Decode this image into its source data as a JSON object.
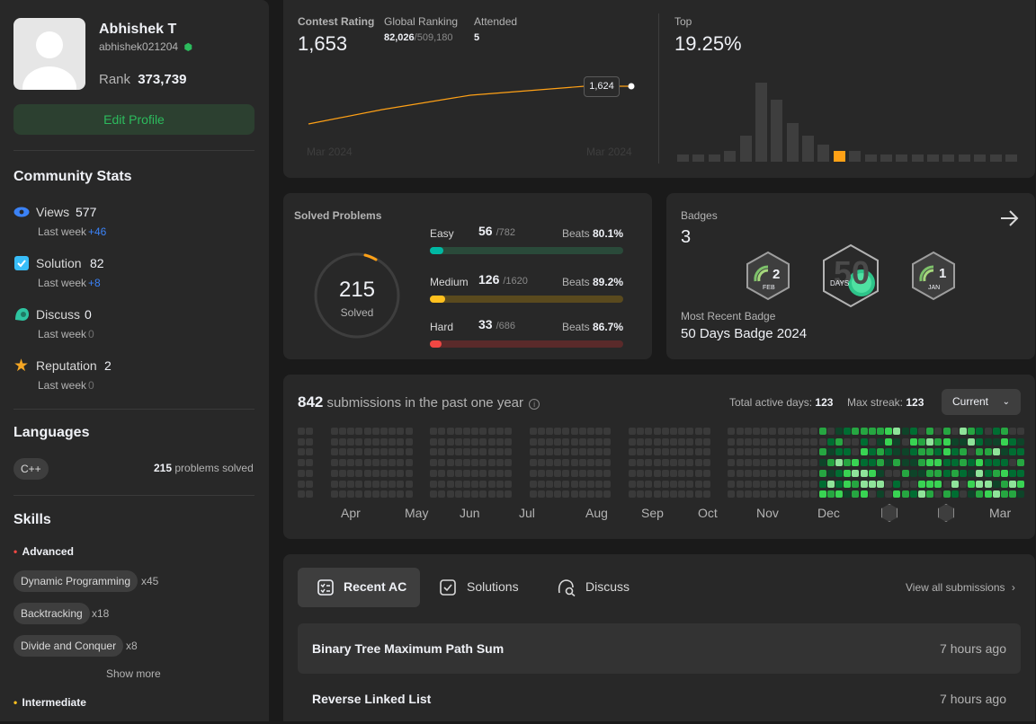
{
  "profile": {
    "name": "Abhishek T",
    "username": "abhishek021204",
    "rank_label": "Rank",
    "rank_value": "373,739",
    "edit_label": "Edit Profile"
  },
  "community": {
    "title": "Community Stats",
    "last_week_label": "Last week",
    "items": [
      {
        "label": "Views",
        "value": "577",
        "delta": "+46",
        "color": "#3b82f6"
      },
      {
        "label": "Solution",
        "value": "82",
        "delta": "+8",
        "color": "#38bdf8"
      },
      {
        "label": "Discuss",
        "value": "0",
        "delta": "0",
        "color": "#2ec4a0"
      },
      {
        "label": "Reputation",
        "value": "2",
        "delta": "0",
        "color": "#f5a623"
      }
    ]
  },
  "languages": {
    "title": "Languages",
    "items": [
      {
        "name": "C++",
        "count": "215",
        "suffix": "problems solved"
      }
    ]
  },
  "skills": {
    "title": "Skills",
    "advanced_label": "Advanced",
    "advanced": [
      {
        "name": "Dynamic Programming",
        "count": "x45"
      },
      {
        "name": "Backtracking",
        "count": "x18"
      },
      {
        "name": "Divide and Conquer",
        "count": "x8"
      }
    ],
    "show_more": "Show more",
    "intermediate_label": "Intermediate"
  },
  "contest": {
    "rating_label": "Contest Rating",
    "rating": "1,653",
    "global_label": "Global Ranking",
    "global_rank": "82,026",
    "global_total": "/509,180",
    "attended_label": "Attended",
    "attended": "5",
    "tooltip": "1,624",
    "axis_start": "Mar 2024",
    "axis_end": "Mar 2024",
    "top_label": "Top",
    "top_value": "19.25%",
    "histogram": [
      0.08,
      0.08,
      0.08,
      0.13,
      0.3,
      0.92,
      0.72,
      0.45,
      0.3,
      0.2,
      0.13,
      0.13,
      0.08,
      0.08,
      0.08,
      0.08,
      0.08,
      0.08,
      0.08,
      0.08,
      0.08,
      0.08
    ],
    "histogram_highlight": 10,
    "accent": "#ffa116"
  },
  "solved": {
    "title": "Solved Problems",
    "total": "215",
    "total_label": "Solved",
    "beats_label": "Beats",
    "rows": [
      {
        "label": "Easy",
        "solved": "56",
        "total": "/782",
        "beats": "80.1%",
        "fraction": 0.072,
        "color": "#00b8a3",
        "track": "#2a4a3a"
      },
      {
        "label": "Medium",
        "solved": "126",
        "total": "/1620",
        "beats": "89.2%",
        "fraction": 0.078,
        "color": "#ffc01e",
        "track": "#5a4a1e"
      },
      {
        "label": "Hard",
        "solved": "33",
        "total": "/686",
        "beats": "86.7%",
        "fraction": 0.048,
        "color": "#ef4743",
        "track": "#5a2a2a"
      }
    ]
  },
  "badges": {
    "title": "Badges",
    "count": "3",
    "items": [
      {
        "month": "FEB",
        "num": "2"
      },
      {
        "month": "DAYS",
        "num": "50"
      },
      {
        "month": "JAN",
        "num": "1"
      }
    ],
    "recent_label": "Most Recent Badge",
    "recent_name": "50 Days Badge 2024"
  },
  "submissions": {
    "count": "842",
    "text": "submissions in the past one year",
    "active_label": "Total active days:",
    "active_value": "123",
    "streak_label": "Max streak:",
    "streak_value": "123",
    "select_label": "Current",
    "months": [
      "Apr",
      "May",
      "Jun",
      "Jul",
      "Aug",
      "Sep",
      "Oct",
      "Nov",
      "Dec",
      "",
      "",
      "Mar"
    ]
  },
  "recent": {
    "tabs": [
      {
        "label": "Recent AC",
        "active": true
      },
      {
        "label": "Solutions",
        "active": false
      },
      {
        "label": "Discuss",
        "active": false
      }
    ],
    "view_all": "View all submissions",
    "items": [
      {
        "title": "Binary Tree Maximum Path Sum",
        "time": "7 hours ago"
      },
      {
        "title": "Reverse Linked List",
        "time": "7 hours ago"
      }
    ]
  }
}
